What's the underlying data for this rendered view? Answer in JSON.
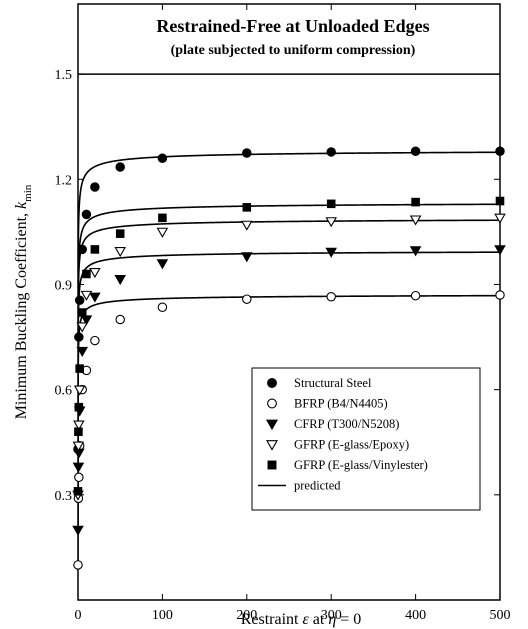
{
  "chart_data": {
    "type": "scatter",
    "title": "Restrained-Free at Unloaded Edges",
    "subtitle": "(plate subjected to uniform compression)",
    "xlabel": {
      "pre": "Restraint ",
      "epsilon": "ε",
      "mid": " at ",
      "eta": "η",
      "post": " = 0"
    },
    "ylabel": {
      "main": "Minimum Buckling Coefficient, ",
      "k": "k",
      "sub": "min"
    },
    "xlim": [
      0,
      500
    ],
    "ylim": [
      0,
      1.7
    ],
    "reference_line": 1.5,
    "x_ticks": [
      0,
      100,
      200,
      300,
      400,
      500
    ],
    "y_ticks": [
      0.3,
      0.6,
      0.9,
      1.2,
      1.5
    ],
    "x_tick_labels": [
      "0",
      "100",
      "200",
      "300",
      "400",
      "500"
    ],
    "y_tick_labels": [
      "0.3",
      "0.6",
      "0.9",
      "1.2",
      "1.5"
    ],
    "grid": false,
    "legend_position": "bottom-right",
    "series": [
      {
        "name": "Structural Steel",
        "marker": "filled-circle",
        "asymptote": 1.288,
        "k0": 0.425,
        "a": 3.5,
        "x": [
          0,
          1,
          2,
          5,
          10,
          20,
          50,
          100,
          200,
          300,
          400,
          500
        ],
        "y": [
          0.43,
          0.75,
          0.855,
          1.0,
          1.1,
          1.178,
          1.235,
          1.26,
          1.275,
          1.278,
          1.28,
          1.28
        ]
      },
      {
        "name": "BFRP (B4/N4405)",
        "marker": "open-circle",
        "asymptote": 0.875,
        "k0": 0.1,
        "a": 5,
        "x": [
          0,
          0.5,
          1,
          2,
          5,
          10,
          20,
          50,
          100,
          200,
          300,
          400,
          500
        ],
        "y": [
          0.1,
          0.29,
          0.35,
          0.44,
          0.6,
          0.655,
          0.74,
          0.8,
          0.835,
          0.858,
          0.865,
          0.868,
          0.87
        ]
      },
      {
        "name": "CFRP (T300/N5208)",
        "marker": "filled-triangle-down",
        "asymptote": 1.0,
        "k0": 0.2,
        "a": 4.5,
        "x": [
          0,
          0.5,
          1,
          2,
          5,
          10,
          20,
          50,
          100,
          200,
          300,
          400,
          500
        ],
        "y": [
          0.2,
          0.38,
          0.42,
          0.54,
          0.71,
          0.8,
          0.865,
          0.915,
          0.96,
          0.98,
          0.993,
          0.997,
          1.0
        ]
      },
      {
        "name": "GFRP (E-glass/Epoxy)",
        "marker": "open-triangle-down",
        "asymptote": 1.092,
        "k0": 0.3,
        "a": 4,
        "x": [
          0,
          0.5,
          1,
          2,
          5,
          10,
          20,
          50,
          100,
          200,
          300,
          400,
          500
        ],
        "y": [
          0.3,
          0.44,
          0.5,
          0.6,
          0.78,
          0.87,
          0.935,
          0.995,
          1.05,
          1.07,
          1.08,
          1.085,
          1.09
        ]
      },
      {
        "name": "GFRP (E-glass/Vinylester)",
        "marker": "filled-square",
        "asymptote": 1.138,
        "k0": 0.3,
        "a": 4,
        "x": [
          0,
          0.5,
          1,
          2,
          5,
          10,
          20,
          50,
          100,
          200,
          300,
          400,
          500
        ],
        "y": [
          0.31,
          0.48,
          0.55,
          0.66,
          0.82,
          0.93,
          1.0,
          1.045,
          1.09,
          1.12,
          1.13,
          1.135,
          1.138
        ]
      }
    ],
    "predicted_label": "predicted"
  }
}
